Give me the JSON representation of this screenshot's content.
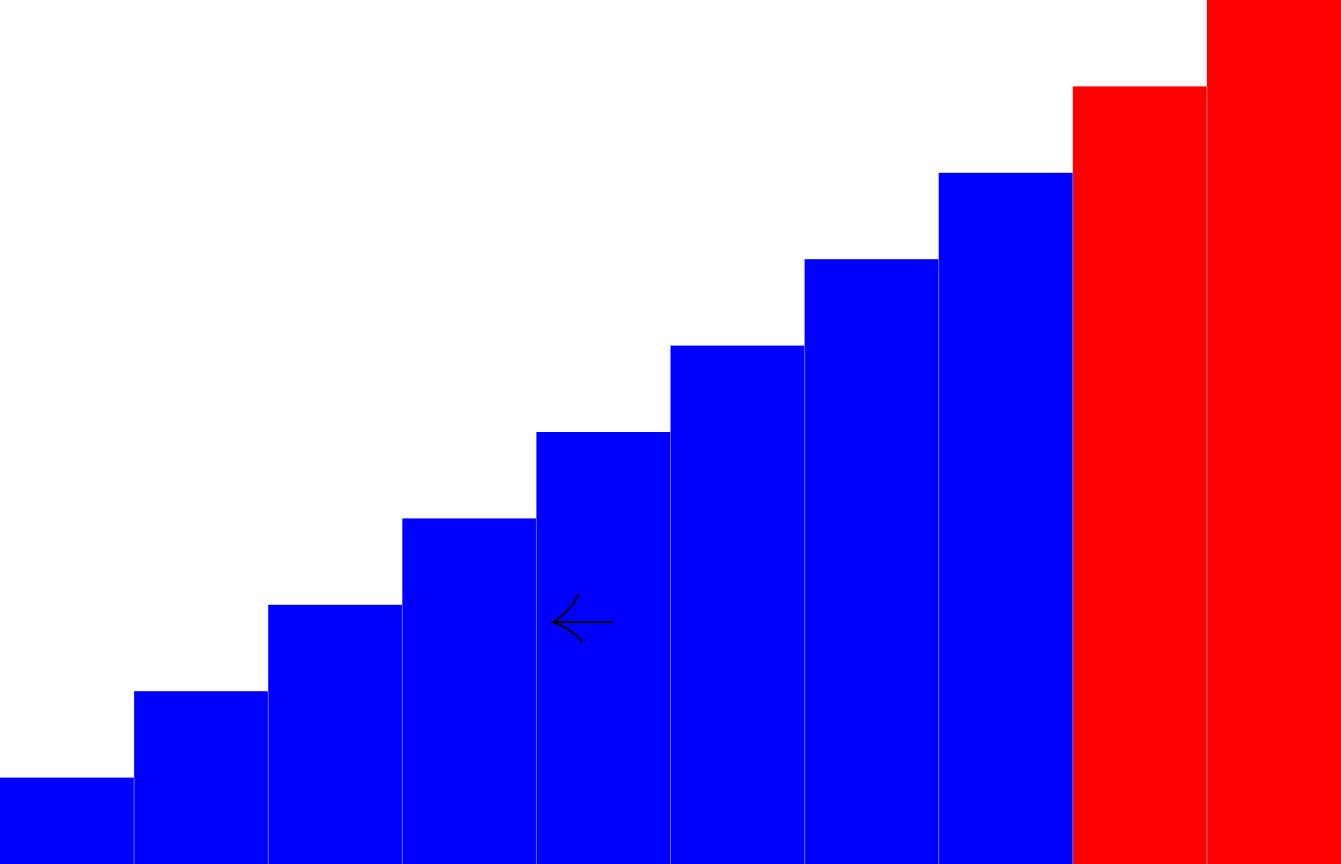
{
  "chart_data": {
    "type": "bar",
    "values": [
      1,
      2,
      3,
      4,
      5,
      6,
      7,
      8,
      9,
      10
    ],
    "highlight_from_index": 8,
    "ylim": [
      0,
      10
    ],
    "colors": {
      "default": "#0000ff",
      "highlight": "#ff0000",
      "background": "#ffffff",
      "divider": "#6a6aff",
      "highlight_divider": "#ff6a6a"
    },
    "cursor": {
      "icon": "arrow-left-icon",
      "bar_index": 4,
      "value": 2.8
    }
  }
}
